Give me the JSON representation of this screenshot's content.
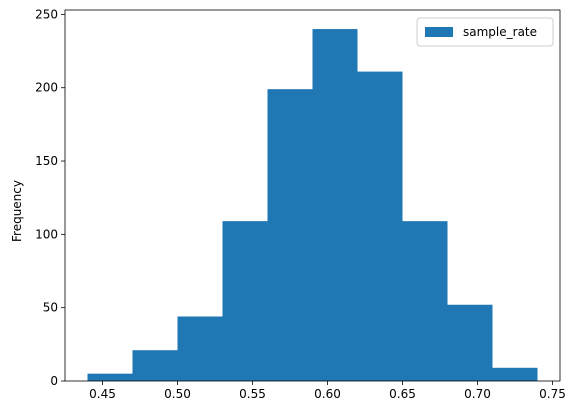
{
  "chart_data": {
    "type": "bar",
    "title": "",
    "xlabel": "",
    "ylabel": "Frequency",
    "xlim": [
      0.425,
      0.755
    ],
    "ylim": [
      0,
      253
    ],
    "bin_edges": [
      0.44,
      0.47,
      0.5,
      0.53,
      0.56,
      0.59,
      0.62,
      0.65,
      0.68,
      0.71,
      0.74
    ],
    "series": [
      {
        "name": "sample_rate",
        "values": [
          5,
          21,
          44,
          109,
          199,
          240,
          211,
          109,
          52,
          9
        ]
      }
    ],
    "x_ticks": [
      0.45,
      0.5,
      0.55,
      0.6,
      0.65,
      0.7,
      0.75
    ],
    "x_tick_labels": [
      "0.45",
      "0.50",
      "0.55",
      "0.60",
      "0.65",
      "0.70",
      "0.75"
    ],
    "y_ticks": [
      0,
      50,
      100,
      150,
      200,
      250
    ],
    "y_tick_labels": [
      "0",
      "50",
      "100",
      "150",
      "200",
      "250"
    ],
    "bar_color": "#1f77b4",
    "grid": false,
    "legend": {
      "position": "top-right",
      "entries": [
        "sample_rate"
      ]
    }
  }
}
